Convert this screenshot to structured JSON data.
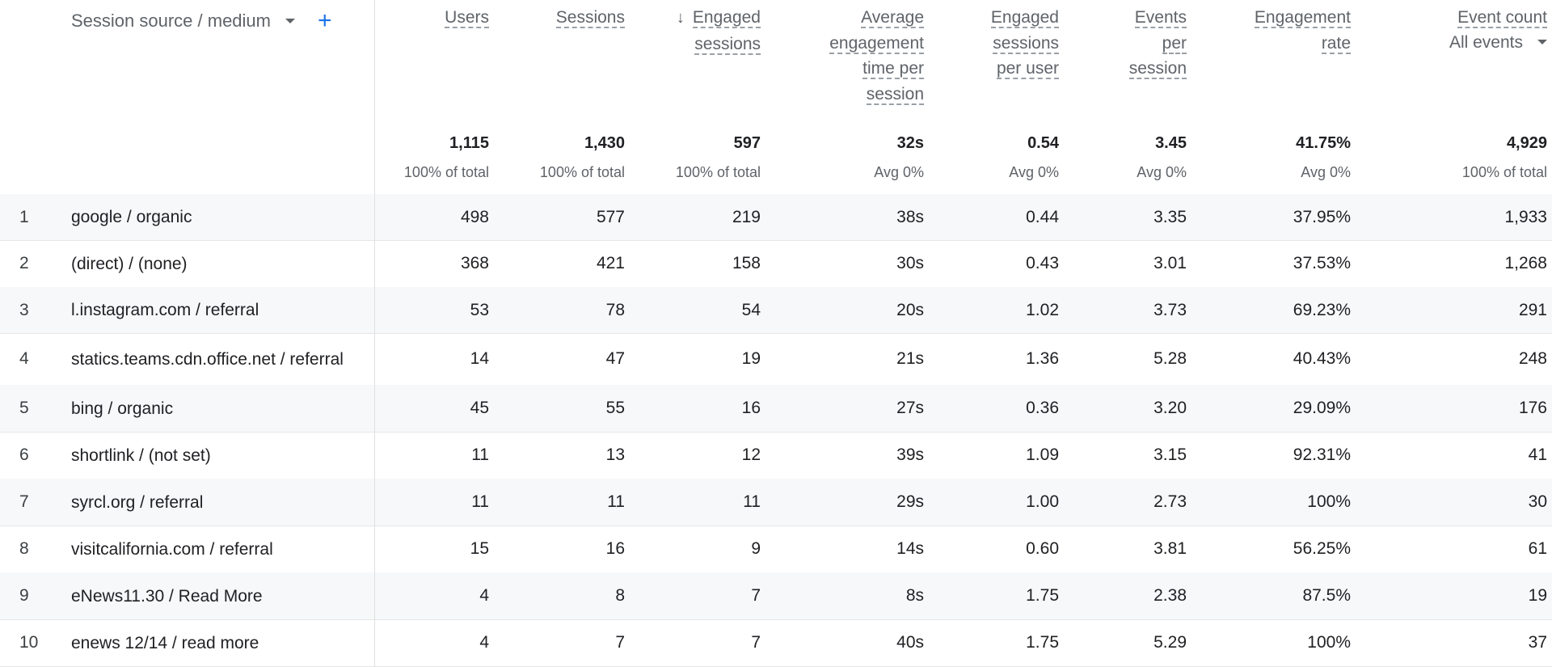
{
  "dimension": {
    "label": "Session source / medium",
    "add_label": "+"
  },
  "columns": [
    {
      "key": "users",
      "lines": [
        "Users"
      ],
      "sort": false
    },
    {
      "key": "sessions",
      "lines": [
        "Sessions"
      ],
      "sort": false
    },
    {
      "key": "engaged_sessions",
      "lines": [
        "Engaged",
        "sessions"
      ],
      "sort": true
    },
    {
      "key": "avg_engagement_time",
      "lines": [
        "Average",
        "engagement",
        "time per",
        "session"
      ],
      "sort": false
    },
    {
      "key": "engaged_per_user",
      "lines": [
        "Engaged",
        "sessions",
        "per user"
      ],
      "sort": false
    },
    {
      "key": "events_per_session",
      "lines": [
        "Events",
        "per",
        "session"
      ],
      "sort": false
    },
    {
      "key": "engagement_rate",
      "lines": [
        "Engagement",
        "rate"
      ],
      "sort": false
    },
    {
      "key": "event_count",
      "lines": [
        "Event count"
      ],
      "sort": false,
      "dropdown": "All events"
    }
  ],
  "totals": [
    {
      "value": "1,115",
      "sub": "100% of total"
    },
    {
      "value": "1,430",
      "sub": "100% of total"
    },
    {
      "value": "597",
      "sub": "100% of total"
    },
    {
      "value": "32s",
      "sub": "Avg 0%"
    },
    {
      "value": "0.54",
      "sub": "Avg 0%"
    },
    {
      "value": "3.45",
      "sub": "Avg 0%"
    },
    {
      "value": "41.75%",
      "sub": "Avg 0%"
    },
    {
      "value": "4,929",
      "sub": "100% of total"
    }
  ],
  "rows": [
    {
      "index": "1",
      "source": "google / organic",
      "values": [
        "498",
        "577",
        "219",
        "38s",
        "0.44",
        "3.35",
        "37.95%",
        "1,933"
      ]
    },
    {
      "index": "2",
      "source": "(direct) / (none)",
      "values": [
        "368",
        "421",
        "158",
        "30s",
        "0.43",
        "3.01",
        "37.53%",
        "1,268"
      ]
    },
    {
      "index": "3",
      "source": "l.instagram.com / referral",
      "values": [
        "53",
        "78",
        "54",
        "20s",
        "1.02",
        "3.73",
        "69.23%",
        "291"
      ]
    },
    {
      "index": "4",
      "source": "statics.teams.cdn.office.net / referral",
      "values": [
        "14",
        "47",
        "19",
        "21s",
        "1.36",
        "5.28",
        "40.43%",
        "248"
      ]
    },
    {
      "index": "5",
      "source": "bing / organic",
      "values": [
        "45",
        "55",
        "16",
        "27s",
        "0.36",
        "3.20",
        "29.09%",
        "176"
      ]
    },
    {
      "index": "6",
      "source": "shortlink / (not set)",
      "values": [
        "11",
        "13",
        "12",
        "39s",
        "1.09",
        "3.15",
        "92.31%",
        "41"
      ]
    },
    {
      "index": "7",
      "source": "syrcl.org / referral",
      "values": [
        "11",
        "11",
        "11",
        "29s",
        "1.00",
        "2.73",
        "100%",
        "30"
      ]
    },
    {
      "index": "8",
      "source": "visitcalifornia.com / referral",
      "values": [
        "15",
        "16",
        "9",
        "14s",
        "0.60",
        "3.81",
        "56.25%",
        "61"
      ]
    },
    {
      "index": "9",
      "source": "eNews11.30 / Read More",
      "values": [
        "4",
        "8",
        "7",
        "8s",
        "1.75",
        "2.38",
        "87.5%",
        "19"
      ]
    },
    {
      "index": "10",
      "source": "enews 12/14 / read more",
      "values": [
        "4",
        "7",
        "7",
        "40s",
        "1.75",
        "5.29",
        "100%",
        "37"
      ]
    }
  ]
}
